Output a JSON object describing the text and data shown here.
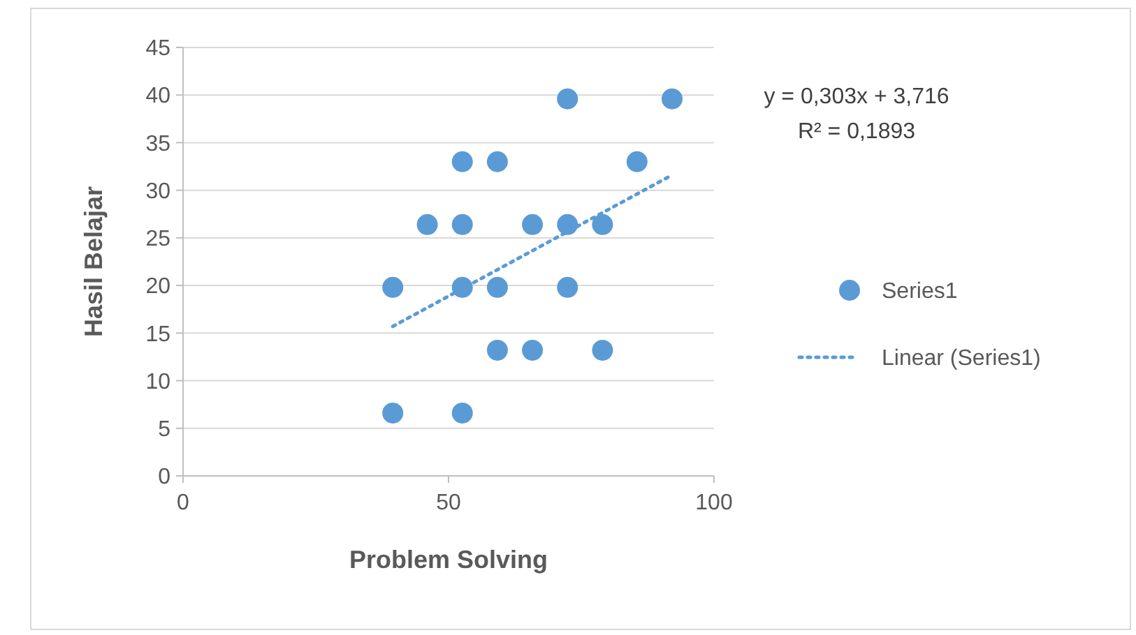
{
  "chart_data": {
    "type": "scatter",
    "xlabel": "Problem Solving",
    "ylabel": "Hasil Belajar",
    "xlim": [
      0,
      100
    ],
    "xticks": [
      0,
      50,
      100
    ],
    "ylim": [
      0,
      45
    ],
    "yticks": [
      0,
      5,
      10,
      15,
      20,
      25,
      30,
      35,
      40,
      45
    ],
    "grid": "y",
    "legend": "right",
    "annotations": [
      "y = 0,303x + 3,716",
      "R² = 0,1893"
    ],
    "series": [
      {
        "name": "Series1",
        "marker": "circle",
        "color": "#5b9bd5",
        "x": [
          72.4,
          92.1,
          52.6,
          59.2,
          85.5,
          46,
          52.6,
          65.8,
          72.4,
          79,
          39.5,
          52.6,
          59.2,
          72.4,
          59.2,
          65.8,
          79,
          39.5,
          52.6
        ],
        "values": [
          39.6,
          39.6,
          33,
          33,
          33,
          26.4,
          26.4,
          26.4,
          26.4,
          26.4,
          19.8,
          19.8,
          19.8,
          19.8,
          13.2,
          13.2,
          13.2,
          6.6,
          6.6
        ]
      },
      {
        "name": "Linear (Series1)",
        "type": "line",
        "line_style": "dotted",
        "marker": "none",
        "color": "#5b9bd5",
        "x": [
          39.5,
          92.1
        ],
        "values": [
          15.7,
          31.6
        ]
      }
    ]
  }
}
